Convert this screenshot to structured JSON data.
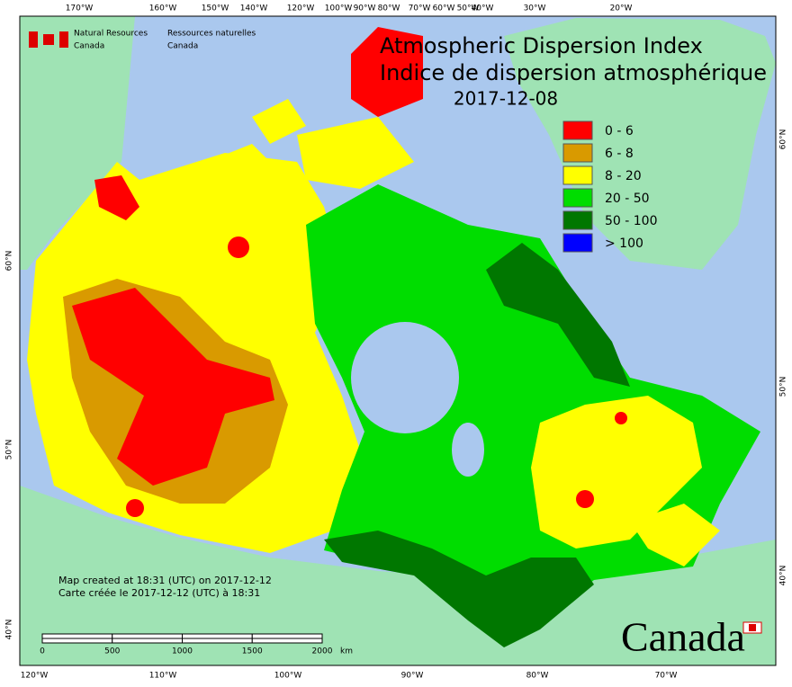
{
  "header": {
    "agency_en": [
      "Natural Resources",
      "Canada"
    ],
    "agency_fr": [
      "Ressources naturelles",
      "Canada"
    ],
    "title_en": "Atmospheric Dispersion Index",
    "title_fr": "Indice de dispersion atmosphérique",
    "date": "2017-12-08"
  },
  "legend": {
    "items": [
      {
        "label": "0 - 6",
        "color": "#ff0000"
      },
      {
        "label": "6 - 8",
        "color": "#d99a00"
      },
      {
        "label": "8 - 20",
        "color": "#ffff00"
      },
      {
        "label": "20 - 50",
        "color": "#00dd00"
      },
      {
        "label": "50 - 100",
        "color": "#007700"
      },
      {
        "label": "> 100",
        "color": "#0000ff"
      }
    ]
  },
  "graticule": {
    "top": [
      "170°W",
      "160°W",
      "150°W",
      "140°W",
      "120°W",
      "100°W",
      "90°W",
      "80°W",
      "70°W",
      "60°W",
      "50°W",
      "40°W",
      "30°W",
      "20°W"
    ],
    "bottom": [
      "120°W",
      "110°W",
      "100°W",
      "90°W",
      "80°W",
      "70°W"
    ],
    "left": [
      "60°N",
      "50°N",
      "40°N"
    ],
    "right": [
      "60°N",
      "50°N",
      "40°N"
    ]
  },
  "footer": {
    "created_en": "Map created at 18:31 (UTC) on 2017-12-12",
    "created_fr": "Carte créée le 2017-12-12 (UTC) à 18:31"
  },
  "scale_bar": {
    "ticks": [
      0,
      500,
      1000,
      1500,
      2000
    ],
    "unit": "km"
  },
  "wordmark": "Canada"
}
